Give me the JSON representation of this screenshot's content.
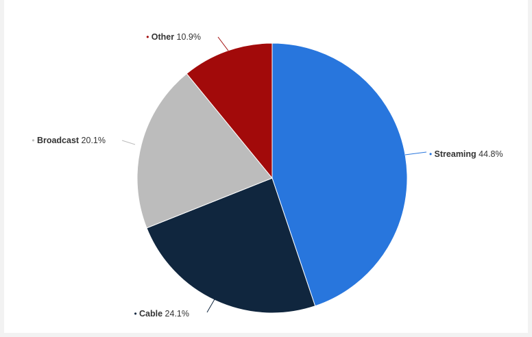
{
  "chart_data": {
    "type": "pie",
    "slices": [
      {
        "name": "Streaming",
        "value": 44.8,
        "label": "44.8%",
        "color": "#2876dd"
      },
      {
        "name": "Cable",
        "value": 24.1,
        "label": "24.1%",
        "color": "#10263e"
      },
      {
        "name": "Broadcast",
        "value": 20.1,
        "label": "20.1%",
        "color": "#bcbcbc"
      },
      {
        "name": "Other",
        "value": 10.9,
        "label": "10.9%",
        "color": "#a20a0a"
      }
    ],
    "legend": "none",
    "data_labels": "outside-with-leaders"
  }
}
